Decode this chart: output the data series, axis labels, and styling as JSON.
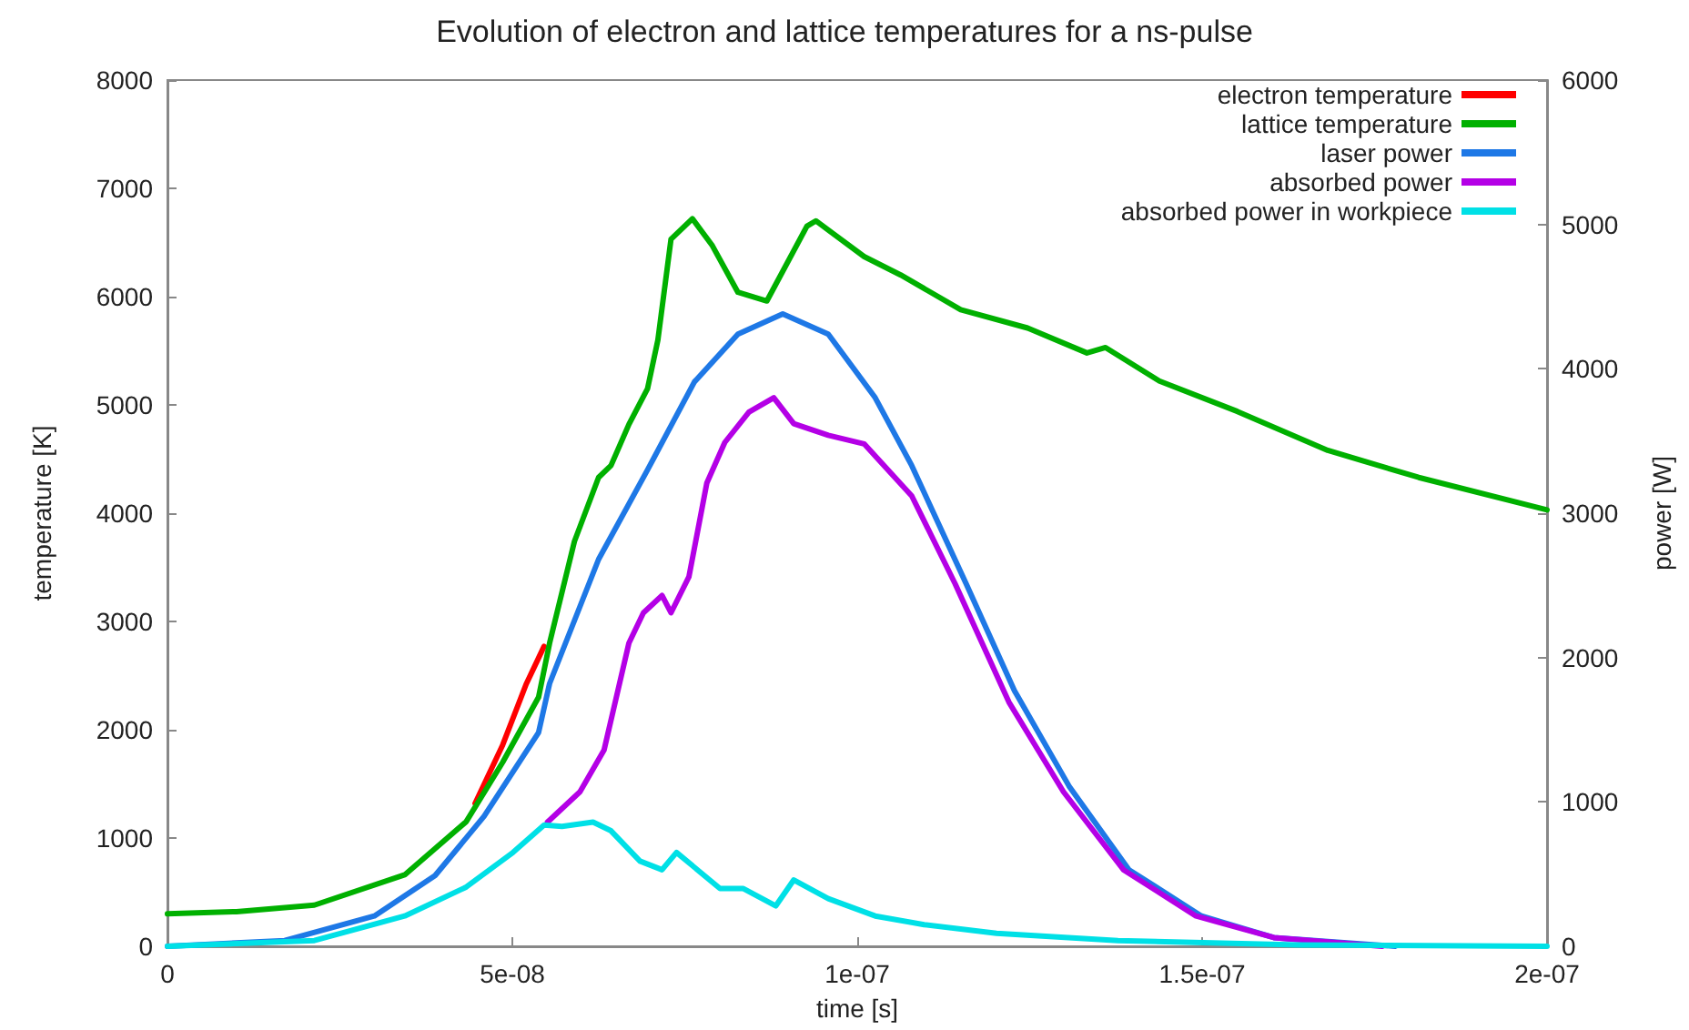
{
  "chart_data": {
    "type": "line",
    "title": "Evolution of electron and lattice temperatures for a ns-pulse",
    "xlabel": "time [s]",
    "ylabel": "temperature [K]",
    "y2label": "power [W]",
    "xlim": [
      0,
      2e-07
    ],
    "xticks": [
      0,
      {
        "value": 5e-08,
        "label": "5e-08"
      },
      {
        "value": 1e-07,
        "label": "1e-07"
      },
      {
        "value": 1.5e-07,
        "label": "1.5e-07"
      },
      {
        "value": 2e-07,
        "label": "2e-07"
      }
    ],
    "ylim": [
      0,
      8000
    ],
    "yticks": [
      0,
      1000,
      2000,
      3000,
      4000,
      5000,
      6000,
      7000,
      8000
    ],
    "y2lim": [
      0,
      6000
    ],
    "y2ticks": [
      0,
      1000,
      2000,
      3000,
      4000,
      5000,
      6000
    ],
    "grid": false,
    "legend": "top right",
    "marker": "none",
    "line_style": "solid",
    "series": [
      {
        "name": "electron temperature",
        "color": "#ff0000",
        "x": [
          4.46e-08,
          4.86e-08,
          5.2e-08,
          5.46e-08
        ],
        "values": [
          1320,
          1860,
          2420,
          2770
        ]
      },
      {
        "name": "lattice temperature",
        "color": "#00b000",
        "x": [
          0,
          1e-08,
          2.13e-08,
          3.44e-08,
          4.33e-08,
          4.86e-08,
          5.38e-08,
          5.54e-08,
          5.9e-08,
          6.25e-08,
          6.43e-08,
          6.69e-08,
          6.96e-08,
          7.11e-08,
          7.3e-08,
          7.61e-08,
          7.9e-08,
          8.27e-08,
          8.69e-08,
          9.27e-08,
          9.4e-08,
          1.01e-07,
          1.063e-07,
          1.15e-07,
          1.247e-07,
          1.333e-07,
          1.36e-07,
          1.438e-07,
          1.551e-07,
          1.682e-07,
          1.814e-07,
          2e-07
        ],
        "values": [
          300,
          320,
          380,
          660,
          1150,
          1700,
          2300,
          2800,
          3740,
          4330,
          4440,
          4820,
          5150,
          5600,
          6530,
          6720,
          6470,
          6040,
          5960,
          6650,
          6700,
          6370,
          6200,
          5880,
          5710,
          5480,
          5530,
          5220,
          4940,
          4580,
          4330,
          4030
        ]
      },
      {
        "name": "laser power",
        "color": "#1e78e6",
        "axis": "y2",
        "x": [
          0,
          1.7e-08,
          3e-08,
          3.88e-08,
          4.59e-08,
          5.38e-08,
          5.54e-08,
          6.25e-08,
          6.96e-08,
          7.64e-08,
          8.27e-08,
          8.92e-08,
          9.58e-08,
          1.026e-07,
          1.079e-07,
          1.158e-07,
          1.228e-07,
          1.307e-07,
          1.394e-07,
          1.499e-07,
          1.604e-07,
          1.78e-07
        ],
        "values": [
          0,
          40,
          210,
          490,
          900,
          1480,
          1820,
          2680,
          3300,
          3910,
          4240,
          4380,
          4240,
          3800,
          3330,
          2510,
          1770,
          1110,
          530,
          210,
          60,
          0
        ]
      },
      {
        "name": "absorbed power",
        "color": "#b400e6",
        "axis": "y2",
        "x": [
          5.51e-08,
          5.98e-08,
          6.33e-08,
          6.69e-08,
          6.9e-08,
          7.17e-08,
          7.3e-08,
          7.56e-08,
          7.82e-08,
          8.08e-08,
          8.43e-08,
          8.79e-08,
          9.08e-08,
          9.58e-08,
          1.01e-07,
          1.079e-07,
          1.142e-07,
          1.22e-07,
          1.299e-07,
          1.386e-07,
          1.491e-07,
          1.604e-07,
          1.761e-07
        ],
        "values": [
          860,
          1070,
          1360,
          2100,
          2310,
          2430,
          2310,
          2560,
          3210,
          3490,
          3700,
          3800,
          3620,
          3540,
          3480,
          3120,
          2510,
          1690,
          1070,
          530,
          210,
          60,
          0
        ]
      },
      {
        "name": "absorbed power in workpiece",
        "color": "#00e0e6",
        "axis": "y2",
        "x": [
          0,
          2.13e-08,
          3.44e-08,
          4.33e-08,
          5.01e-08,
          5.46e-08,
          5.72e-08,
          6.17e-08,
          6.43e-08,
          6.85e-08,
          7.17e-08,
          7.38e-08,
          8.01e-08,
          8.35e-08,
          8.82e-08,
          9.08e-08,
          9.58e-08,
          1.026e-07,
          1.097e-07,
          1.202e-07,
          1.378e-07,
          1.64e-07,
          2e-07
        ],
        "values": [
          0,
          40,
          210,
          410,
          650,
          840,
          830,
          860,
          800,
          590,
          530,
          650,
          400,
          400,
          280,
          460,
          330,
          210,
          150,
          90,
          40,
          10,
          0
        ]
      }
    ]
  }
}
